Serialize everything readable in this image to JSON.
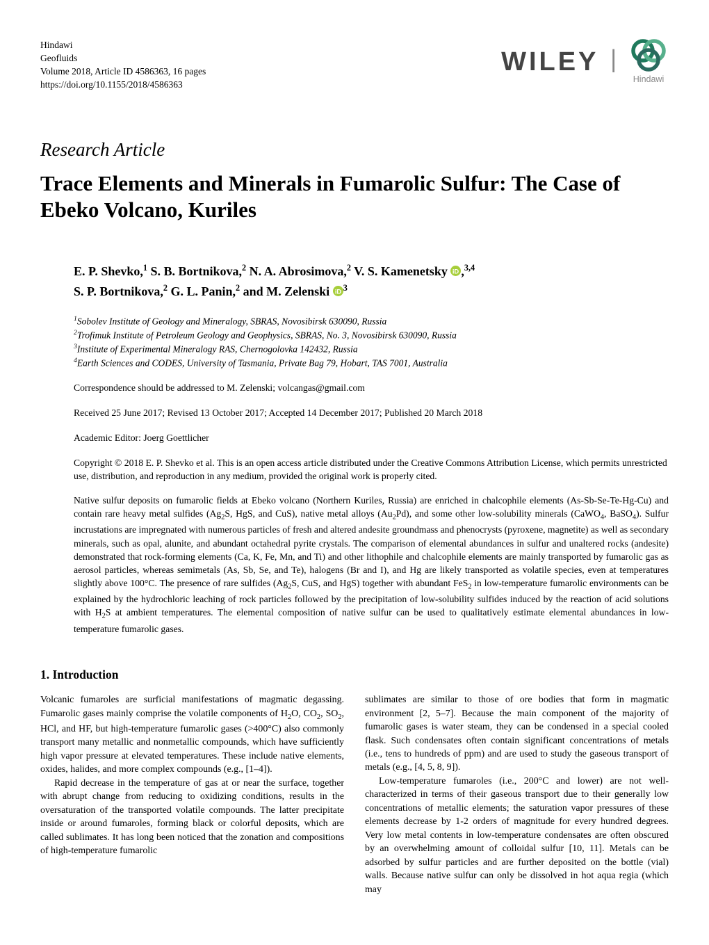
{
  "journal": {
    "publisher": "Hindawi",
    "name": "Geofluids",
    "volume_line": "Volume 2018, Article ID 4586363, 16 pages",
    "doi": "https://doi.org/10.1155/2018/4586363"
  },
  "logos": {
    "wiley_text": "WILEY",
    "hindawi_text": "Hindawi",
    "hindawi_ring_colors": [
      "#1f7a5c",
      "#57b08c",
      "#2a6a5e"
    ]
  },
  "article_type": "Research Article",
  "title": "Trace Elements and Minerals in Fumarolic Sulfur: The Case of Ebeko Volcano, Kuriles",
  "authors_line1_parts": [
    {
      "t": "E. P. Shevko,"
    },
    {
      "s": "1"
    },
    {
      "t": " S. B. Bortnikova,"
    },
    {
      "s": "2"
    },
    {
      "t": " N. A. Abrosimova,"
    },
    {
      "s": "2"
    },
    {
      "t": " V. S. Kamenetsky"
    },
    {
      "orcid": true
    },
    {
      "t": ","
    },
    {
      "s": "3,4"
    }
  ],
  "authors_line2_parts": [
    {
      "t": "S. P. Bortnikova,"
    },
    {
      "s": "2"
    },
    {
      "t": " G. L. Panin,"
    },
    {
      "s": "2"
    },
    {
      "t": " and M. Zelenski"
    },
    {
      "orcid": true
    },
    {
      "s": "3"
    }
  ],
  "affiliations": [
    {
      "n": "1",
      "text": "Sobolev Institute of Geology and Mineralogy, SBRAS, Novosibirsk 630090, Russia"
    },
    {
      "n": "2",
      "text": "Trofimuk Institute of Petroleum Geology and Geophysics, SBRAS, No. 3, Novosibirsk 630090, Russia"
    },
    {
      "n": "3",
      "text": "Institute of Experimental Mineralogy RAS, Chernogolovka 142432, Russia"
    },
    {
      "n": "4",
      "text": "Earth Sciences and CODES, University of Tasmania, Private Bag 79, Hobart, TAS 7001, Australia"
    }
  ],
  "correspondence": "Correspondence should be addressed to M. Zelenski; volcangas@gmail.com",
  "dates": "Received 25 June 2017; Revised 13 October 2017; Accepted 14 December 2017; Published 20 March 2018",
  "editor": "Academic Editor: Joerg Goettlicher",
  "copyright": "Copyright © 2018 E. P. Shevko et al. This is an open access article distributed under the Creative Commons Attribution License, which permits unrestricted use, distribution, and reproduction in any medium, provided the original work is properly cited.",
  "abstract_html": "Native sulfur deposits on fumarolic fields at Ebeko volcano (Northern Kuriles, Russia) are enriched in chalcophile elements (As-Sb-Se-Te-Hg-Cu) and contain rare heavy metal sulfides (Ag<span class=\"subsc\">2</span>S, HgS, and CuS), native metal alloys (Au<span class=\"subsc\">2</span>Pd), and some other low-solubility minerals (CaWO<span class=\"subsc\">4</span>, BaSO<span class=\"subsc\">4</span>). Sulfur incrustations are impregnated with numerous particles of fresh and altered andesite groundmass and phenocrysts (pyroxene, magnetite) as well as secondary minerals, such as opal, alunite, and abundant octahedral pyrite crystals. The comparison of elemental abundances in sulfur and unaltered rocks (andesite) demonstrated that rock-forming elements (Ca, K, Fe, Mn, and Ti) and other lithophile and chalcophile elements are mainly transported by fumarolic gas as aerosol particles, whereas semimetals (As, Sb, Se, and Te), halogens (Br and I), and Hg are likely transported as volatile species, even at temperatures slightly above 100°C. The presence of rare sulfides (Ag<span class=\"subsc\">2</span>S, CuS, and HgS) together with abundant FeS<span class=\"subsc\">2</span> in low-temperature fumarolic environments can be explained by the hydrochloric leaching of rock particles followed by the precipitation of low-solubility sulfides induced by the reaction of acid solutions with H<span class=\"subsc\">2</span>S at ambient temperatures. The elemental composition of native sulfur can be used to qualitatively estimate elemental abundances in low-temperature fumarolic gases.",
  "section_heading": "1. Introduction",
  "col1_para1_html": "Volcanic fumaroles are surficial manifestations of magmatic degassing. Fumarolic gases mainly comprise the volatile components of H<span class=\"subsc\">2</span>O, CO<span class=\"subsc\">2</span>, SO<span class=\"subsc\">2</span>, HCl, and HF, but high-temperature fumarolic gases (>400°C) also commonly transport many metallic and nonmetallic compounds, which have sufficiently high vapor pressure at elevated temperatures. These include native elements, oxides, halides, and more complex compounds (e.g., [1–4]).",
  "col1_para2_html": "Rapid decrease in the temperature of gas at or near the surface, together with abrupt change from reducing to oxidizing conditions, results in the oversaturation of the transported volatile compounds. The latter precipitate inside or around fumaroles, forming black or colorful deposits, which are called sublimates. It has long been noticed that the zonation and compositions of high-temperature fumarolic",
  "col2_para1_html": "sublimates are similar to those of ore bodies that form in magmatic environment [2, 5–7]. Because the main component of the majority of fumarolic gases is water steam, they can be condensed in a special cooled flask. Such condensates often contain significant concentrations of metals (i.e., tens to hundreds of ppm) and are used to study the gaseous transport of metals (e.g., [4, 5, 8, 9]).",
  "col2_para2_html": "Low-temperature fumaroles (i.e., 200°C and lower) are not well-characterized in terms of their gaseous transport due to their generally low concentrations of metallic elements; the saturation vapor pressures of these elements decrease by 1-2 orders of magnitude for every hundred degrees. Very low metal contents in low-temperature condensates are often obscured by an overwhelming amount of colloidal sulfur [10, 11]. Metals can be adsorbed by sulfur particles and are further deposited on the bottle (vial) walls. Because native sulfur can only be dissolved in hot aqua regia (which may",
  "orcid_color": "#a7ce3a"
}
